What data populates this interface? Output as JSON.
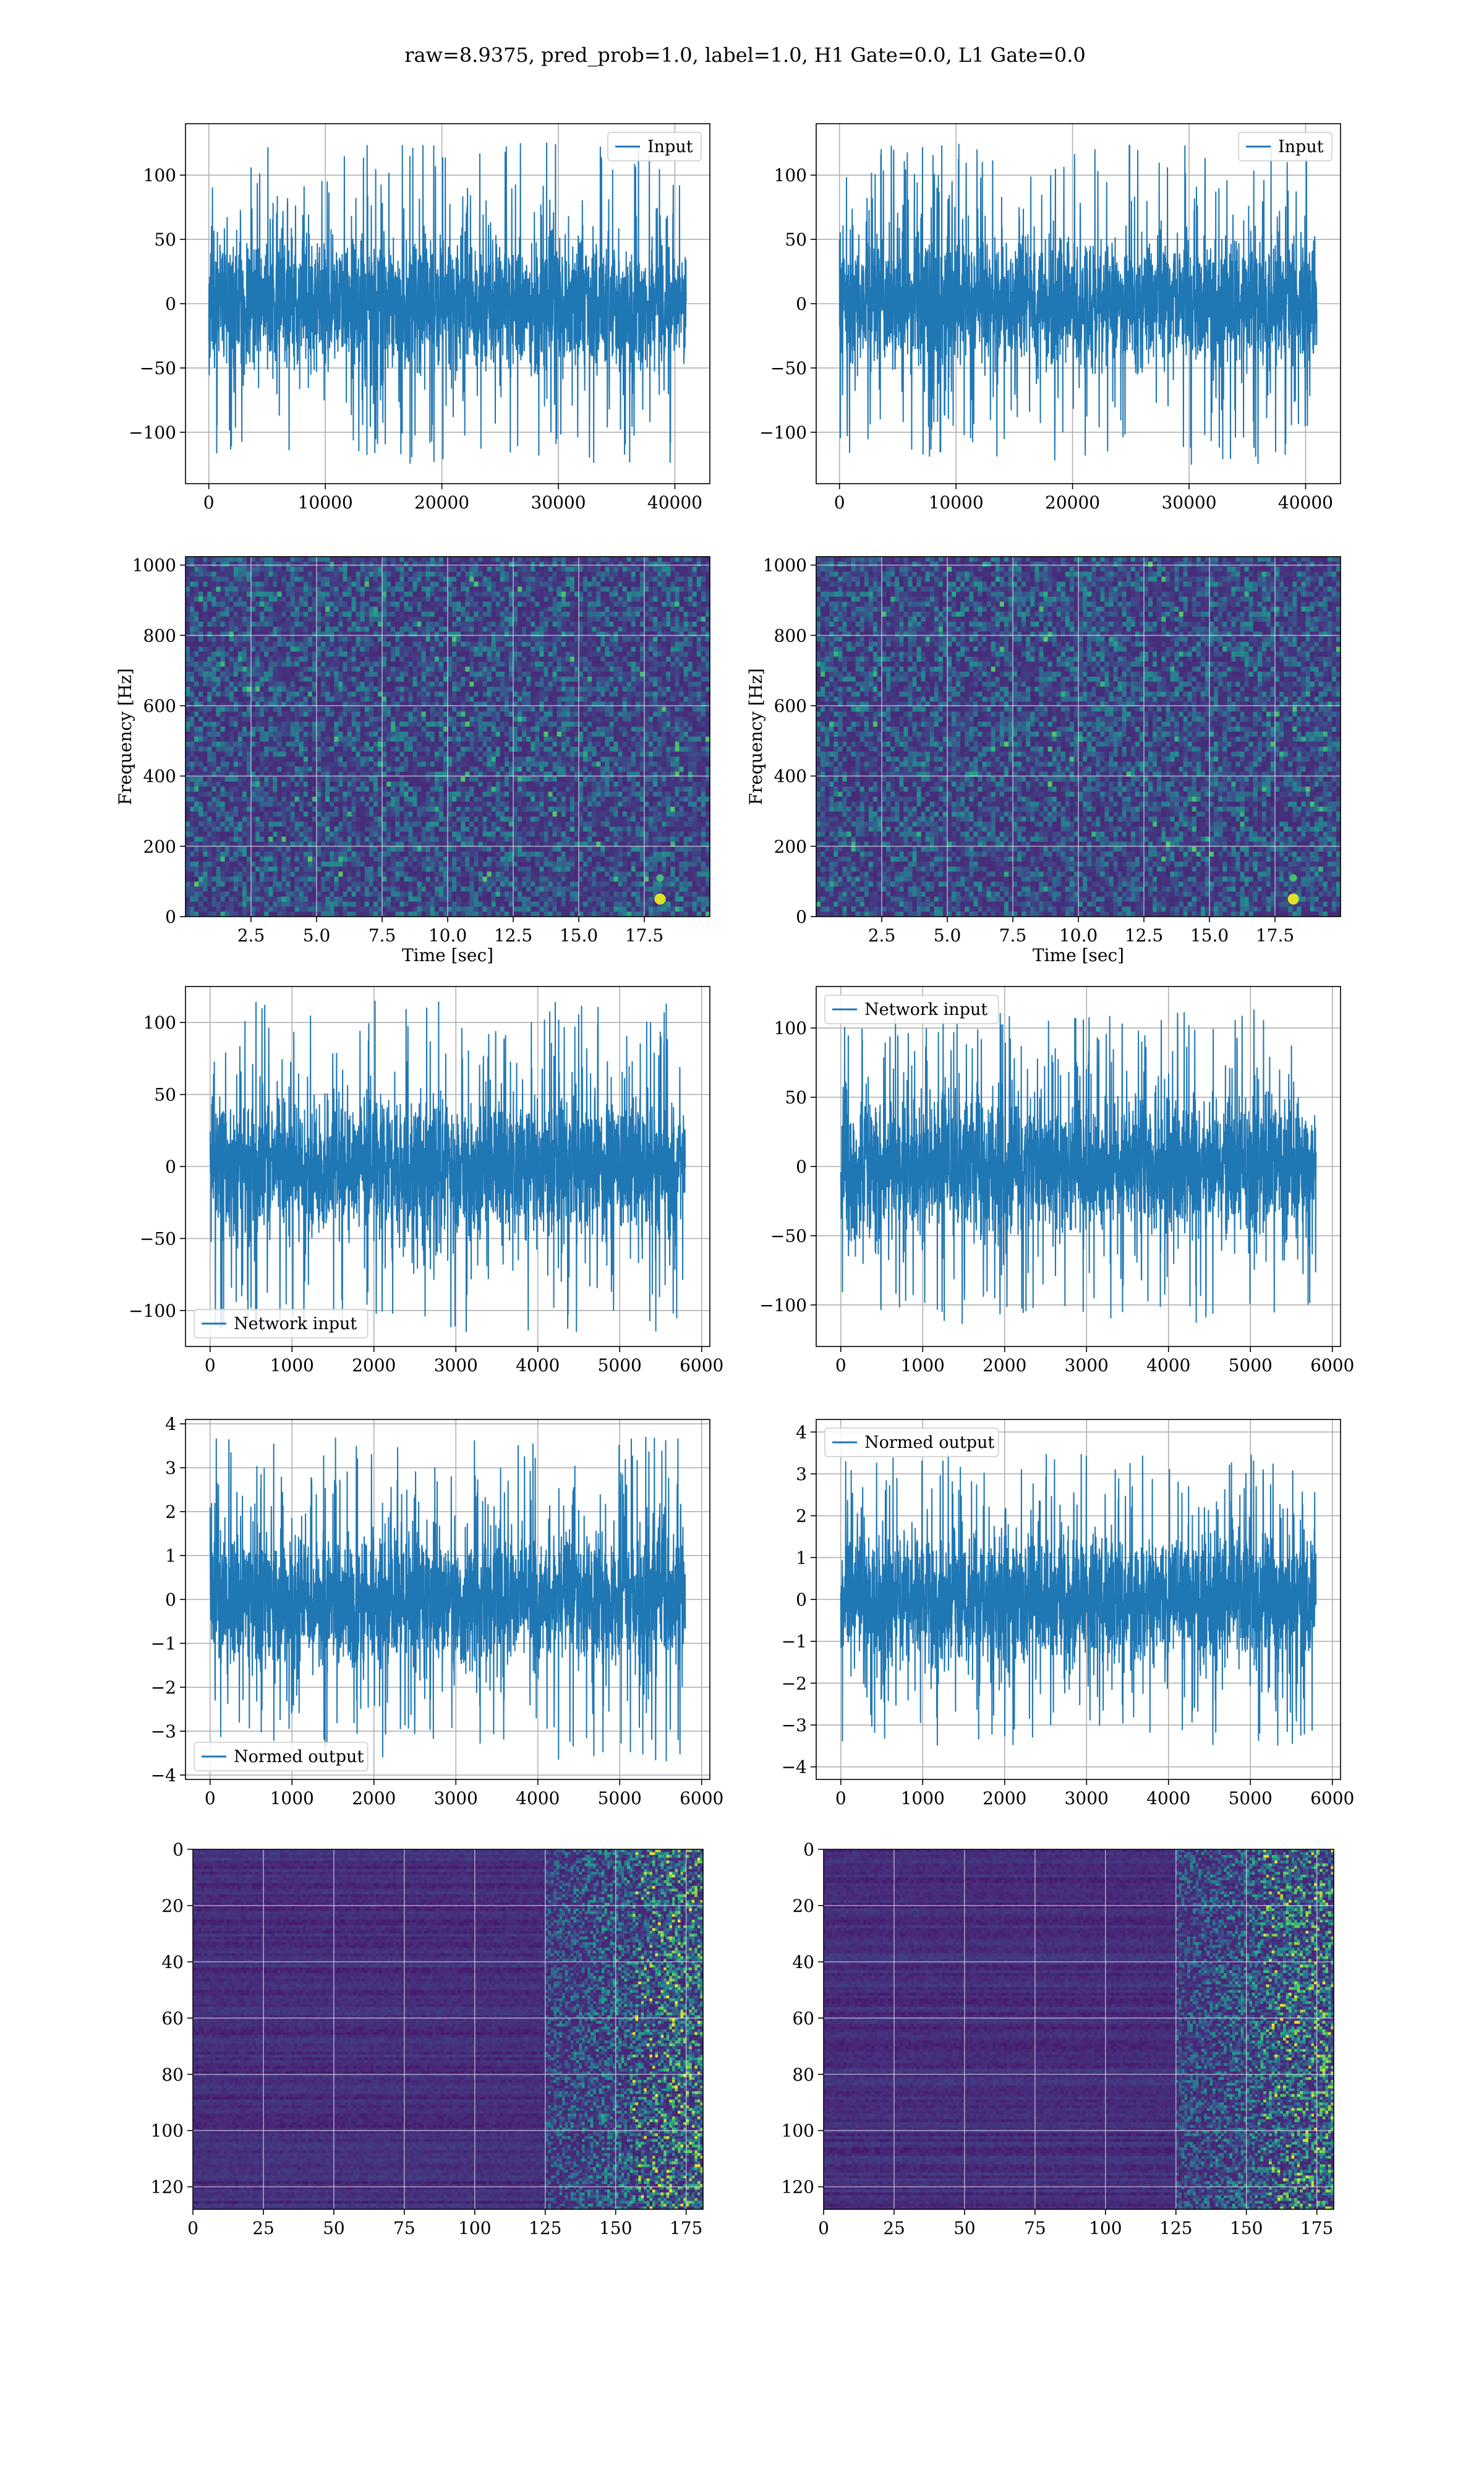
{
  "figure": {
    "title": "raw=8.9375, pred_prob=1.0, label=1.0, H1 Gate=0.0, L1 Gate=0.0",
    "signal_color": "#1f77b4",
    "grid_color": "#b0b0b0"
  },
  "chart_data": [
    {
      "id": "input-h1",
      "type": "line",
      "series": [
        {
          "name": "Input",
          "n_samples": 40960,
          "approx_amplitude_range": [
            -125,
            125
          ]
        }
      ],
      "xlim": [
        -2000,
        43000
      ],
      "ylim": [
        -140,
        140
      ],
      "xticks": [
        0,
        10000,
        20000,
        30000,
        40000
      ],
      "xtick_labels": [
        "0",
        "10000",
        "20000",
        "30000",
        "40000"
      ],
      "yticks": [
        -100,
        -50,
        0,
        50,
        100
      ],
      "ytick_labels": [
        "−100",
        "−50",
        "0",
        "50",
        "100"
      ],
      "xlabel": "",
      "ylabel": "",
      "legend_pos": "top-right",
      "grid": true,
      "seed": 11,
      "envelope": 25
    },
    {
      "id": "input-l1",
      "type": "line",
      "series": [
        {
          "name": "Input",
          "n_samples": 40960,
          "approx_amplitude_range": [
            -125,
            125
          ]
        }
      ],
      "xlim": [
        -2000,
        43000
      ],
      "ylim": [
        -140,
        140
      ],
      "xticks": [
        0,
        10000,
        20000,
        30000,
        40000
      ],
      "xtick_labels": [
        "0",
        "10000",
        "20000",
        "30000",
        "40000"
      ],
      "yticks": [
        -100,
        -50,
        0,
        50,
        100
      ],
      "ytick_labels": [
        "−100",
        "−50",
        "0",
        "50",
        "100"
      ],
      "xlabel": "",
      "ylabel": "",
      "legend_pos": "top-right",
      "grid": true,
      "seed": 23,
      "envelope": 25
    },
    {
      "id": "spectrogram-h1",
      "type": "heatmap",
      "xlim": [
        0,
        20
      ],
      "ylim": [
        0,
        1024
      ],
      "xticks": [
        2.5,
        5,
        7.5,
        10,
        12.5,
        15,
        17.5
      ],
      "xtick_labels": [
        "2.5",
        "5.0",
        "7.5",
        "10.0",
        "12.5",
        "15.0",
        "17.5"
      ],
      "yticks": [
        0,
        200,
        400,
        600,
        800,
        1000
      ],
      "ytick_labels": [
        "0",
        "200",
        "400",
        "600",
        "800",
        "1000"
      ],
      "xlabel": "Time [sec]",
      "ylabel": "Frequency [Hz]",
      "grid": true,
      "colormap": "viridis",
      "bright_spot": {
        "time": 18.1,
        "freq": 50
      },
      "seed": 31
    },
    {
      "id": "spectrogram-l1",
      "type": "heatmap",
      "xlim": [
        0,
        20
      ],
      "ylim": [
        0,
        1024
      ],
      "xticks": [
        2.5,
        5,
        7.5,
        10,
        12.5,
        15,
        17.5
      ],
      "xtick_labels": [
        "2.5",
        "5.0",
        "7.5",
        "10.0",
        "12.5",
        "15.0",
        "17.5"
      ],
      "yticks": [
        0,
        200,
        400,
        600,
        800,
        1000
      ],
      "ytick_labels": [
        "0",
        "200",
        "400",
        "600",
        "800",
        "1000"
      ],
      "xlabel": "Time [sec]",
      "ylabel": "Frequency [Hz]",
      "grid": true,
      "colormap": "viridis",
      "bright_spot": {
        "time": 18.2,
        "freq": 50
      },
      "seed": 47
    },
    {
      "id": "network-input-h1",
      "type": "line",
      "series": [
        {
          "name": "Network input",
          "n_samples": 5800,
          "approx_amplitude_range": [
            -110,
            115
          ]
        }
      ],
      "xlim": [
        -300,
        6100
      ],
      "ylim": [
        -125,
        125
      ],
      "xticks": [
        0,
        1000,
        2000,
        3000,
        4000,
        5000,
        6000
      ],
      "xtick_labels": [
        "0",
        "1000",
        "2000",
        "3000",
        "4000",
        "5000",
        "6000"
      ],
      "yticks": [
        -100,
        -50,
        0,
        50,
        100
      ],
      "ytick_labels": [
        "−100",
        "−50",
        "0",
        "50",
        "100"
      ],
      "xlabel": "",
      "ylabel": "",
      "legend_pos": "bottom-left",
      "grid": true,
      "seed": 53,
      "envelope": 24
    },
    {
      "id": "network-input-l1",
      "type": "line",
      "series": [
        {
          "name": "Network input",
          "n_samples": 5800,
          "approx_amplitude_range": [
            -120,
            115
          ]
        }
      ],
      "xlim": [
        -300,
        6100
      ],
      "ylim": [
        -130,
        130
      ],
      "xticks": [
        0,
        1000,
        2000,
        3000,
        4000,
        5000,
        6000
      ],
      "xtick_labels": [
        "0",
        "1000",
        "2000",
        "3000",
        "4000",
        "5000",
        "6000"
      ],
      "yticks": [
        -100,
        -50,
        0,
        50,
        100
      ],
      "ytick_labels": [
        "−100",
        "−50",
        "0",
        "50",
        "100"
      ],
      "xlabel": "",
      "ylabel": "",
      "legend_pos": "top-left",
      "grid": true,
      "seed": 67,
      "envelope": 24
    },
    {
      "id": "normed-output-h1",
      "type": "line",
      "series": [
        {
          "name": "Normed output",
          "n_samples": 5800,
          "approx_amplitude_range": [
            -3.7,
            3.7
          ]
        }
      ],
      "xlim": [
        -300,
        6100
      ],
      "ylim": [
        -4.1,
        4.1
      ],
      "xticks": [
        0,
        1000,
        2000,
        3000,
        4000,
        5000,
        6000
      ],
      "xtick_labels": [
        "0",
        "1000",
        "2000",
        "3000",
        "4000",
        "5000",
        "6000"
      ],
      "yticks": [
        -4,
        -3,
        -2,
        -1,
        0,
        1,
        2,
        3,
        4
      ],
      "ytick_labels": [
        "−4",
        "−3",
        "−2",
        "−1",
        "0",
        "1",
        "2",
        "3",
        "4"
      ],
      "xlabel": "",
      "ylabel": "",
      "legend_pos": "bottom-left",
      "grid": true,
      "seed": 79,
      "envelope": 0.8
    },
    {
      "id": "normed-output-l1",
      "type": "line",
      "series": [
        {
          "name": "Normed output",
          "n_samples": 5800,
          "approx_amplitude_range": [
            -3.9,
            3.5
          ]
        }
      ],
      "xlim": [
        -300,
        6100
      ],
      "ylim": [
        -4.3,
        4.3
      ],
      "xticks": [
        0,
        1000,
        2000,
        3000,
        4000,
        5000,
        6000
      ],
      "xtick_labels": [
        "0",
        "1000",
        "2000",
        "3000",
        "4000",
        "5000",
        "6000"
      ],
      "yticks": [
        -4,
        -3,
        -2,
        -1,
        0,
        1,
        2,
        3,
        4
      ],
      "ytick_labels": [
        "−4",
        "−3",
        "−2",
        "−1",
        "0",
        "1",
        "2",
        "3",
        "4"
      ],
      "xlabel": "",
      "ylabel": "",
      "legend_pos": "top-left",
      "grid": true,
      "seed": 97,
      "envelope": 0.8
    },
    {
      "id": "feature-map-h1",
      "type": "heatmap",
      "xlim": [
        0,
        181
      ],
      "ylim": [
        128,
        0
      ],
      "xticks": [
        0,
        25,
        50,
        75,
        100,
        125,
        150,
        175
      ],
      "xtick_labels": [
        "0",
        "25",
        "50",
        "75",
        "100",
        "125",
        "150",
        "175"
      ],
      "yticks": [
        0,
        20,
        40,
        60,
        80,
        100,
        120
      ],
      "ytick_labels": [
        "0",
        "20",
        "40",
        "60",
        "80",
        "100",
        "120"
      ],
      "xlabel": "",
      "ylabel": "",
      "grid": true,
      "colormap": "viridis",
      "active_from_column": 125,
      "seed": 113
    },
    {
      "id": "feature-map-l1",
      "type": "heatmap",
      "xlim": [
        0,
        181
      ],
      "ylim": [
        128,
        0
      ],
      "xticks": [
        0,
        25,
        50,
        75,
        100,
        125,
        150,
        175
      ],
      "xtick_labels": [
        "0",
        "25",
        "50",
        "75",
        "100",
        "125",
        "150",
        "175"
      ],
      "yticks": [
        0,
        20,
        40,
        60,
        80,
        100,
        120
      ],
      "ytick_labels": [
        "0",
        "20",
        "40",
        "60",
        "80",
        "100",
        "120"
      ],
      "xlabel": "",
      "ylabel": "",
      "grid": true,
      "colormap": "viridis",
      "active_from_column": 125,
      "seed": 131
    }
  ]
}
